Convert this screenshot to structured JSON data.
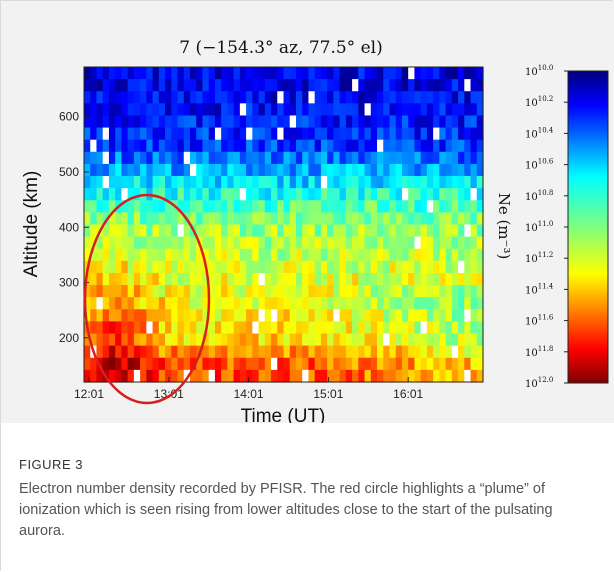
{
  "figure": {
    "label": "FIGURE 3",
    "caption": "Electron number density recorded by PFISR. The red circle highlights a “plume” of ionization which is seen rising from lower altitudes close to the start of the pulsating aurora."
  },
  "chart_data": {
    "type": "heatmap",
    "title": "7 (−154.3° az, 77.5° el)",
    "xlabel": "Time (UT)",
    "ylabel": "Altitude (km)",
    "x_ticks": [
      "12:01",
      "13:01",
      "14:01",
      "15:01",
      "16:01"
    ],
    "y_ticks": [
      "200",
      "300",
      "400",
      "500",
      "600"
    ],
    "y_tick_values": [
      200,
      300,
      400,
      500,
      600
    ],
    "xlim": [
      "12:01",
      "17:01"
    ],
    "ylim": [
      120,
      690
    ],
    "colorbar": {
      "label": "Ne (m⁻³)",
      "ticks": [
        "10.0",
        "10.2",
        "10.4",
        "10.6",
        "10.8",
        "11.0",
        "11.2",
        "11.4",
        "11.6",
        "11.8",
        "12.0"
      ],
      "tick_base": "10",
      "range_log10": [
        10.0,
        12.0
      ],
      "colormap": "jet"
    },
    "annotation": {
      "shape": "ellipse",
      "color": "#d62020",
      "description_time_range": [
        "12:01",
        "13:30"
      ],
      "description_altitude_range": [
        140,
        460
      ]
    },
    "log10_ne_by_altitude": [
      {
        "altitude_km": 650,
        "log10_ne": 10.2
      },
      {
        "altitude_km": 550,
        "log10_ne": 10.35
      },
      {
        "altitude_km": 500,
        "log10_ne": 10.6
      },
      {
        "altitude_km": 450,
        "log10_ne": 10.85
      },
      {
        "altitude_km": 400,
        "log10_ne": 11.05
      },
      {
        "altitude_km": 300,
        "log10_ne": 11.2
      },
      {
        "altitude_km": 200,
        "log10_ne": 11.3
      },
      {
        "altitude_km": 150,
        "log10_ne": 11.6
      }
    ]
  }
}
